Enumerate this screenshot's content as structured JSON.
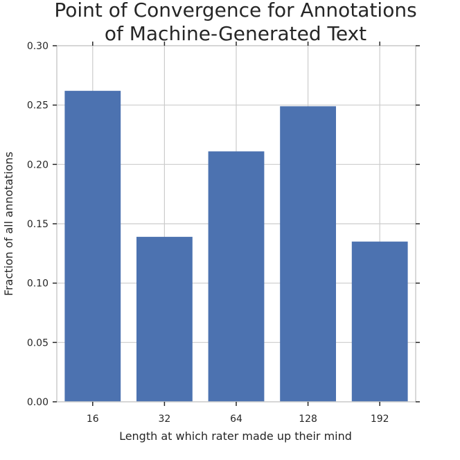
{
  "chart_data": {
    "type": "bar",
    "title_lines": [
      "Point of Convergence for Annotations",
      "of Machine-Generated Text"
    ],
    "xlabel": "Length at which rater made up their mind",
    "ylabel": "Fraction of all annotations",
    "categories": [
      "16",
      "32",
      "64",
      "128",
      "192"
    ],
    "values": [
      0.262,
      0.139,
      0.211,
      0.249,
      0.135
    ],
    "ylim": [
      0,
      0.3
    ],
    "yticks": [
      "0.00",
      "0.05",
      "0.10",
      "0.15",
      "0.20",
      "0.25",
      "0.30"
    ],
    "grid": true,
    "bar_color": "#4c72b0",
    "grid_color": "#cccccc",
    "spine_color": "#cccccc",
    "tick_color": "#262626"
  }
}
